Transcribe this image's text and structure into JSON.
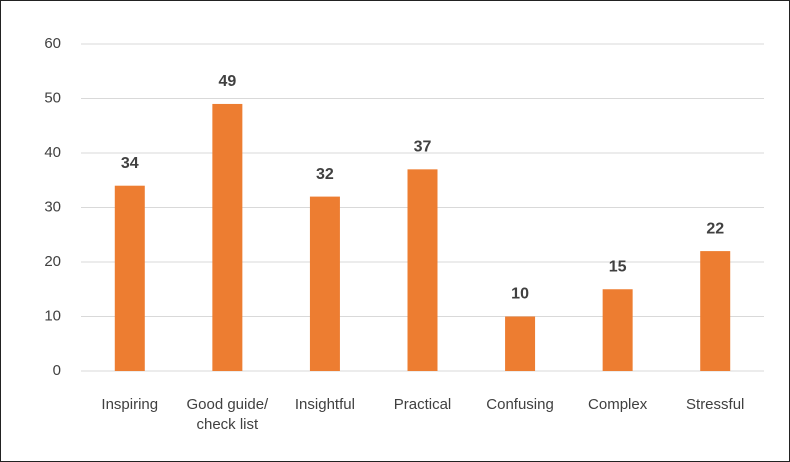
{
  "chart_data": {
    "type": "bar",
    "categories": [
      "Inspiring",
      "Good guide/ check list",
      "Insightful",
      "Practical",
      "Confusing",
      "Complex",
      "Stressful"
    ],
    "values": [
      34,
      49,
      32,
      37,
      10,
      15,
      22
    ],
    "color": "#ed7d31",
    "ylim": [
      0,
      60
    ],
    "yticks": [
      0,
      10,
      20,
      30,
      40,
      50,
      60
    ],
    "grid": true
  }
}
